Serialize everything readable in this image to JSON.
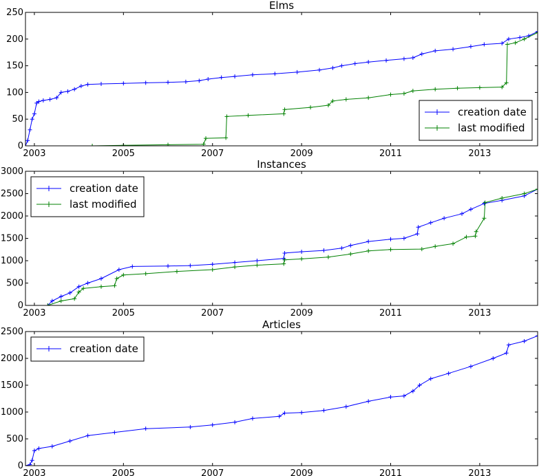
{
  "chart_data": [
    {
      "type": "line",
      "title": "Elms",
      "xlim": [
        2002.8,
        2014.3
      ],
      "ylim": [
        0,
        250
      ],
      "xticks": [
        2003,
        2005,
        2007,
        2009,
        2011,
        2013
      ],
      "yticks": [
        0,
        50,
        100,
        150,
        200,
        250
      ],
      "legend": "lower-right",
      "series": [
        {
          "name": "creation date",
          "color": "#0000ff",
          "x": [
            2002.8,
            2002.85,
            2002.9,
            2002.95,
            2003.0,
            2003.05,
            2003.1,
            2003.2,
            2003.35,
            2003.5,
            2003.6,
            2003.75,
            2003.9,
            2004.05,
            2004.2,
            2004.5,
            2005.0,
            2005.5,
            2006.0,
            2006.4,
            2006.7,
            2006.9,
            2007.2,
            2007.5,
            2007.9,
            2008.4,
            2008.9,
            2009.4,
            2009.7,
            2009.9,
            2010.2,
            2010.5,
            2010.9,
            2011.3,
            2011.5,
            2011.7,
            2012.0,
            2012.4,
            2012.8,
            2013.1,
            2013.5,
            2013.65,
            2013.9,
            2014.1,
            2014.3
          ],
          "y": [
            0,
            10,
            30,
            50,
            60,
            80,
            83,
            85,
            87,
            90,
            100,
            102,
            106,
            112,
            115,
            116,
            117,
            118,
            119,
            120,
            122,
            125,
            128,
            130,
            133,
            135,
            138,
            142,
            146,
            150,
            154,
            157,
            160,
            163,
            165,
            172,
            178,
            181,
            186,
            190,
            192,
            200,
            203,
            206,
            214
          ]
        },
        {
          "name": "last modified",
          "color": "#008000",
          "x": [
            2004.3,
            2005.0,
            2006.0,
            2006.8,
            2006.85,
            2007.3,
            2007.32,
            2007.8,
            2008.6,
            2008.62,
            2009.2,
            2009.6,
            2009.7,
            2010.0,
            2010.5,
            2011.0,
            2011.3,
            2011.5,
            2012.0,
            2012.5,
            2013.0,
            2013.5,
            2013.6,
            2013.62,
            2013.8,
            2014.0,
            2014.3
          ],
          "y": [
            0,
            1,
            2,
            3,
            14,
            15,
            55,
            57,
            60,
            68,
            72,
            76,
            84,
            87,
            90,
            96,
            98,
            103,
            106,
            108,
            109,
            110,
            118,
            190,
            193,
            200,
            212
          ]
        }
      ]
    },
    {
      "type": "line",
      "title": "Instances",
      "xlim": [
        2002.8,
        2014.3
      ],
      "ylim": [
        0,
        3000
      ],
      "xticks": [
        2003,
        2005,
        2007,
        2009,
        2011,
        2013
      ],
      "yticks": [
        0,
        500,
        1000,
        1500,
        2000,
        2500,
        3000
      ],
      "legend": "upper-left",
      "series": [
        {
          "name": "creation date",
          "color": "#0000ff",
          "x": [
            2003.3,
            2003.4,
            2003.6,
            2003.8,
            2004.0,
            2004.2,
            2004.5,
            2004.9,
            2005.2,
            2006.0,
            2006.5,
            2007.0,
            2007.5,
            2008.0,
            2008.6,
            2008.62,
            2009.0,
            2009.5,
            2009.9,
            2010.1,
            2010.5,
            2011.0,
            2011.3,
            2011.6,
            2011.62,
            2011.9,
            2012.2,
            2012.6,
            2012.8,
            2013.1,
            2013.5,
            2014.0,
            2014.3
          ],
          "y": [
            0,
            100,
            200,
            280,
            420,
            500,
            600,
            800,
            870,
            880,
            890,
            920,
            960,
            1000,
            1050,
            1170,
            1200,
            1230,
            1280,
            1340,
            1430,
            1480,
            1500,
            1600,
            1750,
            1850,
            1950,
            2050,
            2150,
            2280,
            2350,
            2450,
            2600
          ]
        },
        {
          "name": "last modified",
          "color": "#008000",
          "x": [
            2003.3,
            2003.6,
            2003.9,
            2004.0,
            2004.1,
            2004.5,
            2004.8,
            2004.85,
            2005.0,
            2005.5,
            2006.2,
            2007.0,
            2007.5,
            2008.0,
            2008.6,
            2008.62,
            2009.0,
            2009.6,
            2010.1,
            2010.5,
            2011.0,
            2011.7,
            2012.0,
            2012.4,
            2012.7,
            2012.9,
            2012.92,
            2013.1,
            2013.12,
            2013.5,
            2014.0,
            2014.3
          ],
          "y": [
            0,
            100,
            150,
            300,
            380,
            420,
            440,
            600,
            680,
            710,
            760,
            800,
            860,
            900,
            930,
            1020,
            1040,
            1080,
            1150,
            1220,
            1250,
            1260,
            1320,
            1380,
            1530,
            1550,
            1650,
            1950,
            2300,
            2400,
            2500,
            2600
          ]
        }
      ]
    },
    {
      "type": "line",
      "title": "Articles",
      "xlim": [
        2002.8,
        2014.3
      ],
      "ylim": [
        0,
        2500
      ],
      "xticks": [
        2003,
        2005,
        2007,
        2009,
        2011,
        2013
      ],
      "yticks": [
        0,
        500,
        1000,
        1500,
        2000,
        2500
      ],
      "legend": "upper-left",
      "series": [
        {
          "name": "creation date",
          "color": "#0000ff",
          "x": [
            2002.8,
            2002.9,
            2002.95,
            2003.0,
            2003.1,
            2003.4,
            2003.8,
            2004.2,
            2004.8,
            2005.5,
            2006.5,
            2007.0,
            2007.5,
            2007.9,
            2008.5,
            2008.62,
            2009.0,
            2009.5,
            2010.0,
            2010.5,
            2011.0,
            2011.3,
            2011.5,
            2011.65,
            2011.9,
            2012.3,
            2012.8,
            2013.3,
            2013.6,
            2013.65,
            2014.0,
            2014.3
          ],
          "y": [
            0,
            20,
            100,
            280,
            320,
            360,
            460,
            560,
            620,
            690,
            720,
            760,
            810,
            880,
            920,
            980,
            990,
            1030,
            1100,
            1200,
            1280,
            1300,
            1390,
            1500,
            1620,
            1720,
            1850,
            2000,
            2100,
            2250,
            2320,
            2420
          ]
        }
      ]
    }
  ]
}
